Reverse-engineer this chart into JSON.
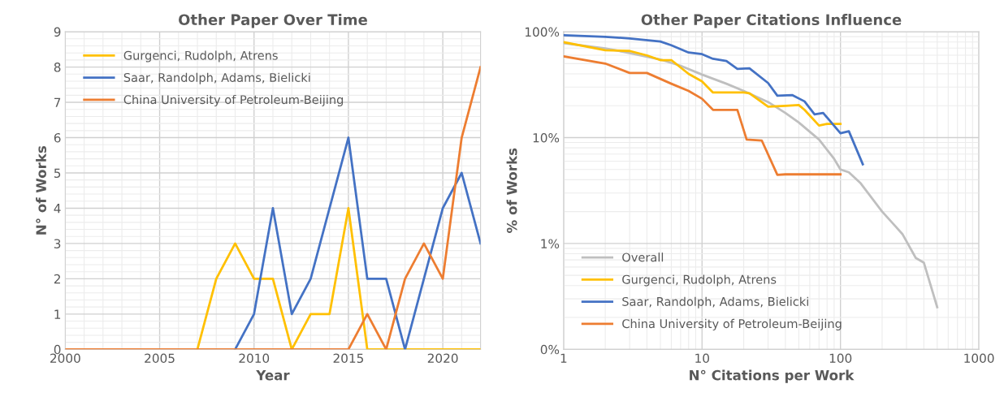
{
  "chart_data": [
    {
      "type": "line",
      "title": "Other Paper Over Time",
      "xlabel": "Year",
      "ylabel": "N° of Works",
      "x": [
        2000,
        2001,
        2002,
        2003,
        2004,
        2005,
        2006,
        2007,
        2008,
        2009,
        2010,
        2011,
        2012,
        2013,
        2014,
        2015,
        2016,
        2017,
        2018,
        2019,
        2020,
        2021,
        2022
      ],
      "series": [
        {
          "name": "Gurgenci, Rudolph, Atrens",
          "color": "#ffc000",
          "values": [
            null,
            null,
            null,
            null,
            null,
            null,
            null,
            0,
            2,
            3,
            2,
            2,
            0,
            1,
            1,
            4,
            0,
            0,
            0,
            0,
            0,
            0,
            0
          ]
        },
        {
          "name": "Saar, Randolph, Adams, Bielicki",
          "color": "#4472c4",
          "values": [
            null,
            null,
            null,
            null,
            null,
            null,
            null,
            null,
            null,
            0,
            1,
            4,
            1,
            2,
            4,
            6,
            2,
            2,
            0,
            2,
            4,
            5,
            3
          ]
        },
        {
          "name": "China University of Petroleum-Beijing",
          "color": "#ed7d31",
          "values": [
            0,
            0,
            0,
            0,
            0,
            0,
            0,
            0,
            0,
            0,
            0,
            0,
            0,
            0,
            0,
            0,
            1,
            0,
            2,
            3,
            2,
            6,
            8
          ]
        }
      ],
      "xlim": [
        2000,
        2022
      ],
      "xticks": [
        2000,
        2005,
        2010,
        2015,
        2020
      ],
      "ylim": [
        0,
        9
      ],
      "yticks": [
        0,
        1,
        2,
        3,
        4,
        5,
        6,
        7,
        8,
        9
      ],
      "grid": true,
      "legend": "top left",
      "marker": "none",
      "line_style": "solid"
    },
    {
      "type": "line",
      "title": "Other Paper Citations Influence",
      "xlabel": "N° Citations per Work",
      "ylabel": "% of Works",
      "log": "xy",
      "series": [
        {
          "name": "Overall",
          "color": "#bfbfbf",
          "x": [
            1,
            2,
            3,
            5,
            7,
            10,
            15,
            20,
            30,
            40,
            50,
            70,
            90,
            100,
            115,
            140,
            200,
            250,
            280,
            350,
            400,
            500
          ],
          "values": [
            78,
            69.6,
            63,
            54.7,
            47.7,
            39.4,
            32.3,
            27.6,
            21.7,
            17.1,
            13.9,
            9.6,
            6.3,
            5.0,
            4.7,
            3.7,
            2.0,
            1.45,
            1.23,
            0.73,
            0.66,
            0.25
          ]
        },
        {
          "name": "Gurgenci, Rudolph, Atrens",
          "color": "#ffc000",
          "x": [
            1,
            2,
            3,
            4,
            5,
            6,
            8,
            10,
            12,
            15,
            20,
            22,
            30,
            40,
            50,
            55,
            70,
            80,
            100
          ],
          "values": [
            79.8,
            67,
            65.9,
            59.8,
            54,
            54,
            40,
            34,
            26.7,
            26.7,
            26.7,
            26.3,
            19.6,
            20,
            20.3,
            18.3,
            13.0,
            13.5,
            13.5
          ]
        },
        {
          "name": "Saar, Randolph, Adams, Bielicki",
          "color": "#4472c4",
          "x": [
            1,
            2,
            3,
            5,
            6,
            8,
            10,
            12,
            15,
            18,
            22,
            30,
            35,
            45,
            55,
            65,
            75,
            100,
            115,
            145
          ],
          "values": [
            92.8,
            89.6,
            86.6,
            80.9,
            74.5,
            63.7,
            61.5,
            55.5,
            52.9,
            44.6,
            45.2,
            32.8,
            24.9,
            25.2,
            22.0,
            16.6,
            17.1,
            11.0,
            11.5,
            5.6
          ]
        },
        {
          "name": "China University of Petroleum-Beijing",
          "color": "#ed7d31",
          "x": [
            1,
            2,
            3,
            4,
            6,
            8,
            10,
            12,
            16,
            18,
            21,
            27,
            35,
            40,
            100
          ],
          "values": [
            58.6,
            50.1,
            40.8,
            40.8,
            32.3,
            27.6,
            23.3,
            18.3,
            18.3,
            18.3,
            9.6,
            9.4,
            4.45,
            4.5,
            4.5
          ]
        }
      ],
      "xlim": [
        1,
        1000
      ],
      "xticks": [
        1,
        10,
        100,
        1000
      ],
      "ylim": [
        0.1,
        100
      ],
      "yticks": [
        {
          "value": 0.1,
          "label": "0%"
        },
        {
          "value": 1,
          "label": "1%"
        },
        {
          "value": 10,
          "label": "10%"
        },
        {
          "value": 100,
          "label": "100%"
        }
      ],
      "grid": true,
      "legend": "bottom left",
      "marker": "none",
      "line_style": "solid"
    }
  ]
}
